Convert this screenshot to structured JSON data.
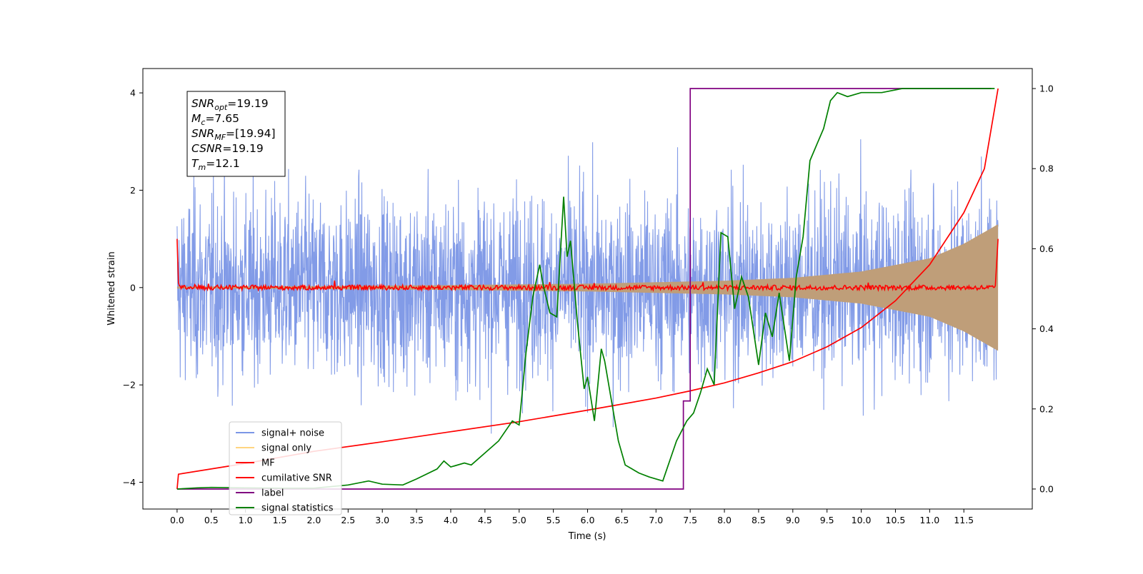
{
  "chart_data": {
    "type": "line",
    "xlabel": "Time (s)",
    "ylabel": "Whitened strain",
    "xlim": [
      -0.5,
      12.5
    ],
    "ylim": [
      -4.55,
      4.5
    ],
    "ylim_right": [
      -0.05,
      1.05
    ],
    "x_ticks": [
      "0.0",
      "0.5",
      "1.0",
      "1.5",
      "2.0",
      "2.5",
      "3.0",
      "3.5",
      "4.0",
      "4.5",
      "5.0",
      "5.5",
      "6.0",
      "6.5",
      "7.0",
      "7.5",
      "8.0",
      "8.5",
      "9.0",
      "9.5",
      "10.0",
      "10.5",
      "11.0",
      "11.5"
    ],
    "y_ticks_left": [
      "4",
      "2",
      "0",
      "−2",
      "−4"
    ],
    "y_ticks_right": [
      "1.0",
      "0.8",
      "0.6",
      "0.4",
      "0.2",
      "0.0"
    ],
    "grid": false,
    "legend_position": "lower-left",
    "annotation": [
      {
        "base": "SNR",
        "sub": "opt",
        "value": "=19.19"
      },
      {
        "base": "M",
        "sub": "c",
        "value": "=7.65"
      },
      {
        "base": "SNR",
        "sub": "MF",
        "value": "=[19.94]"
      },
      {
        "base": "CSNR",
        "sub": "",
        "value": "=19.19"
      },
      {
        "base": "T",
        "sub": "m",
        "value": "=12.1"
      }
    ],
    "series": [
      {
        "name": "signal+ noise",
        "color": "#7b96e6",
        "axis": "left",
        "kind": "noise_band",
        "duration": 12.0,
        "sigma": 1.0
      },
      {
        "name": "signal only",
        "color": "#ffd580",
        "axis": "left",
        "kind": "chirp_envelope",
        "envelope": [
          [
            0,
            0.02
          ],
          [
            2,
            0.03
          ],
          [
            4,
            0.05
          ],
          [
            6,
            0.08
          ],
          [
            8,
            0.14
          ],
          [
            9,
            0.2
          ],
          [
            10,
            0.33
          ],
          [
            11,
            0.6
          ],
          [
            11.5,
            0.9
          ],
          [
            12,
            1.3
          ]
        ]
      },
      {
        "name": "MF",
        "color": "#ff0000",
        "axis": "left",
        "kind": "jitter",
        "level": 0.0,
        "jitter": 0.05,
        "start": 1.0,
        "end": 1.0
      },
      {
        "name": "cumilative SNR",
        "color": "#ff0000",
        "axis": "right",
        "x": [
          0.0,
          0.02,
          1,
          2,
          3,
          4,
          5,
          6,
          7,
          7.5,
          8,
          8.5,
          9,
          9.5,
          10,
          10.5,
          11,
          11.5,
          11.8,
          12.0
        ],
        "values": [
          0.0,
          0.037,
          0.064,
          0.094,
          0.118,
          0.143,
          0.168,
          0.197,
          0.227,
          0.245,
          0.265,
          0.29,
          0.318,
          0.355,
          0.403,
          0.47,
          0.56,
          0.69,
          0.8,
          1.0
        ]
      },
      {
        "name": "label",
        "color": "#800080",
        "axis": "right",
        "x": [
          0.0,
          7.4,
          7.4,
          7.5,
          7.5,
          11.9
        ],
        "values": [
          0,
          0,
          0.22,
          0.22,
          1.0,
          1.0
        ]
      },
      {
        "name": "signal statistics",
        "color": "#008000",
        "axis": "right",
        "x": [
          0.0,
          0.3,
          0.5,
          1.0,
          1.5,
          2.0,
          2.5,
          2.8,
          3.0,
          3.3,
          3.5,
          3.8,
          3.9,
          4.0,
          4.2,
          4.3,
          4.5,
          4.7,
          4.9,
          5.0,
          5.1,
          5.2,
          5.3,
          5.35,
          5.45,
          5.55,
          5.65,
          5.7,
          5.75,
          5.85,
          5.95,
          6.0,
          6.1,
          6.2,
          6.25,
          6.35,
          6.45,
          6.55,
          6.65,
          6.75,
          6.9,
          7.1,
          7.3,
          7.45,
          7.55,
          7.65,
          7.75,
          7.85,
          7.95,
          8.05,
          8.15,
          8.25,
          8.35,
          8.5,
          8.6,
          8.7,
          8.8,
          8.95,
          9.05,
          9.15,
          9.25,
          9.35,
          9.45,
          9.55,
          9.65,
          9.8,
          10.0,
          10.3,
          10.6,
          11.0,
          11.5,
          11.95
        ],
        "values": [
          0.0,
          0.003,
          0.004,
          0.003,
          0.002,
          0.002,
          0.01,
          0.02,
          0.012,
          0.01,
          0.025,
          0.05,
          0.07,
          0.055,
          0.065,
          0.06,
          0.09,
          0.12,
          0.17,
          0.16,
          0.34,
          0.48,
          0.56,
          0.51,
          0.44,
          0.43,
          0.73,
          0.58,
          0.62,
          0.42,
          0.25,
          0.28,
          0.17,
          0.35,
          0.32,
          0.22,
          0.12,
          0.06,
          0.05,
          0.04,
          0.03,
          0.02,
          0.12,
          0.17,
          0.19,
          0.24,
          0.3,
          0.26,
          0.64,
          0.63,
          0.45,
          0.53,
          0.48,
          0.31,
          0.44,
          0.38,
          0.49,
          0.32,
          0.53,
          0.63,
          0.82,
          0.86,
          0.9,
          0.97,
          0.99,
          0.98,
          0.99,
          0.99,
          1.0,
          1.0,
          1.0,
          1.0
        ]
      }
    ]
  }
}
